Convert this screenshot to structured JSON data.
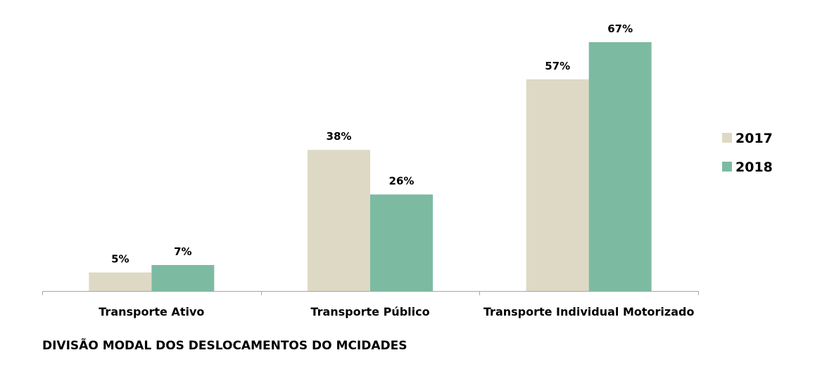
{
  "caption": "DIVISÃO MODAL DOS DESLOCAMENTOS DO MCIDADES",
  "chart_data": {
    "type": "bar",
    "categories": [
      "Transporte Ativo",
      "Transporte Público",
      "Transporte Individual Motorizado"
    ],
    "series": [
      {
        "name": "2017",
        "values": [
          5,
          38,
          57
        ],
        "labels": [
          "5%",
          "38%",
          "57%"
        ],
        "color": "#ddd9c4"
      },
      {
        "name": "2018",
        "values": [
          7,
          26,
          67
        ],
        "labels": [
          "7%",
          "26%",
          "67%"
        ],
        "color": "#7cbba2"
      }
    ],
    "ylim": [
      0,
      67
    ],
    "grid": false,
    "legend_position": "right"
  }
}
